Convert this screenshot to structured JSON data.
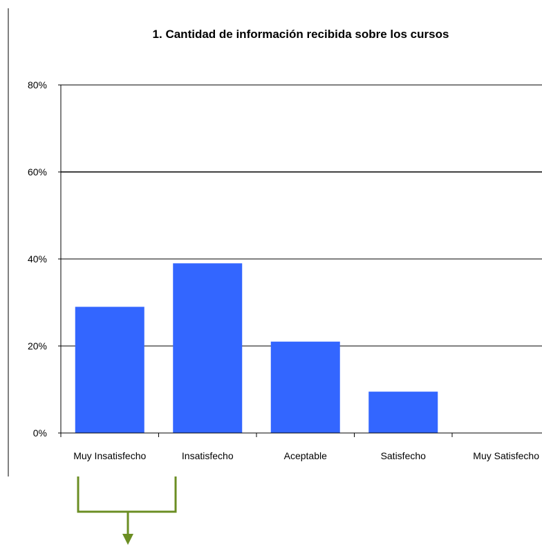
{
  "colors": {
    "bar": "#3366ff",
    "grid": "#000000",
    "axis": "#000000",
    "text": "#000000",
    "bracket": "#6b8e23",
    "background": "#ffffff"
  },
  "chart_data": {
    "type": "bar",
    "title": "1. Cantidad de información recibida sobre los cursos",
    "xlabel": "",
    "ylabel": "",
    "categories": [
      "Muy Insatisfecho",
      "Insatisfecho",
      "Aceptable",
      "Satisfecho",
      "Muy Satisfecho"
    ],
    "values": [
      29,
      39,
      21,
      9.5,
      0
    ],
    "ylim": [
      0,
      80
    ],
    "yticks": [
      0,
      20,
      40,
      60,
      80
    ],
    "ytick_labels": [
      "0%",
      "20%",
      "40%",
      "60%",
      "80%"
    ],
    "grid": true,
    "legend": "none"
  },
  "annotation": {
    "type": "bracket-arrow",
    "spans_categories": [
      "Muy Insatisfecho",
      "Insatisfecho"
    ],
    "direction": "down"
  }
}
